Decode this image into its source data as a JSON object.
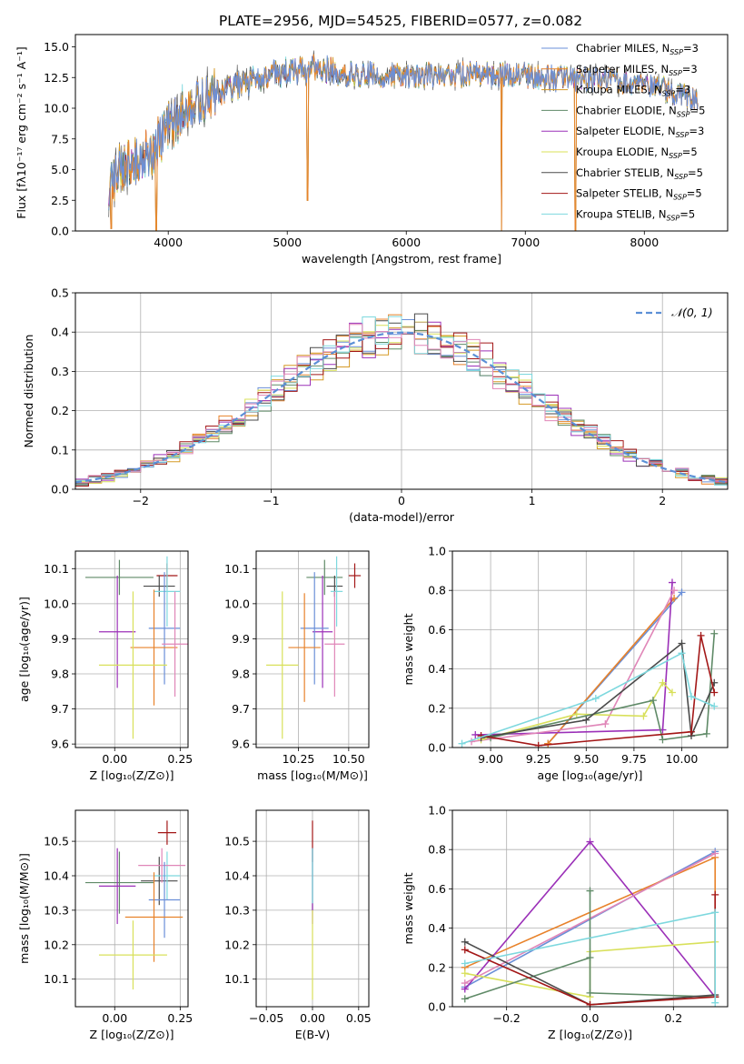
{
  "figure": {
    "title": "PLATE=2956, MJD=54525, FIBERID=0577, z=0.082"
  },
  "colors": {
    "chabrier_miles": "#6a8fd8",
    "salpeter_miles": "#e8822a",
    "kroupa_miles": "#d59a26",
    "chabrier_elodie": "#5f8a67",
    "salpeter_elodie": "#9b30b8",
    "kroupa_elodie": "#d8e05a",
    "chabrier_stelib": "#4a4a4a",
    "salpeter_stelib": "#a31717",
    "kroupa_stelib": "#7dd8de",
    "pink": "#e086b8",
    "gauss": "#5b8fd6",
    "grid": "#b0b0b0"
  },
  "chart_data": [
    {
      "id": "spectrum",
      "type": "line",
      "xlabel": "wavelength [Angstrom, rest frame]",
      "ylabel": "Flux [fλ10⁻¹⁷ erg cm⁻² s⁻¹ A⁻¹]",
      "xlim": [
        3220,
        8700
      ],
      "ylim": [
        0,
        16
      ],
      "xticks": [
        "4000",
        "5000",
        "6000",
        "7000",
        "8000"
      ],
      "yticks": [
        "0.0",
        "2.5",
        "5.0",
        "7.5",
        "10.0",
        "12.5",
        "15.0"
      ],
      "legend": [
        {
          "name": "Chabrier MILES, N",
          "sub": "SSP",
          "n": "=3",
          "color": "#6a8fd8"
        },
        {
          "name": "Salpeter MILES, N",
          "sub": "SSP",
          "n": "=3",
          "color": "#e8822a"
        },
        {
          "name": "Kroupa MILES, N",
          "sub": "SSP",
          "n": "=3",
          "color": "#d59a26"
        },
        {
          "name": "Chabrier ELODIE, N",
          "sub": "SSP",
          "n": "=5",
          "color": "#5f8a67"
        },
        {
          "name": "Salpeter ELODIE, N",
          "sub": "SSP",
          "n": "=3",
          "color": "#9b30b8"
        },
        {
          "name": "Kroupa ELODIE, N",
          "sub": "SSP",
          "n": "=5",
          "color": "#d8e05a"
        },
        {
          "name": "Chabrier STELIB, N",
          "sub": "SSP",
          "n": "=5",
          "color": "#4a4a4a"
        },
        {
          "name": "Salpeter STELIB, N",
          "sub": "SSP",
          "n": "=5",
          "color": "#a31717"
        },
        {
          "name": "Kroupa STELIB, N",
          "sub": "SSP",
          "n": "=5",
          "color": "#7dd8de"
        }
      ],
      "legend_position": "right",
      "continuum": [
        [
          3500,
          4.2
        ],
        [
          3700,
          5.8
        ],
        [
          3900,
          7.0
        ],
        [
          4000,
          8.8
        ],
        [
          4200,
          10.0
        ],
        [
          4400,
          11.2
        ],
        [
          4600,
          12.0
        ],
        [
          4800,
          12.6
        ],
        [
          5000,
          13.0
        ],
        [
          5200,
          13.2
        ],
        [
          5400,
          13.0
        ],
        [
          5600,
          12.8
        ],
        [
          5800,
          12.7
        ],
        [
          6000,
          12.6
        ],
        [
          6200,
          12.7
        ],
        [
          6500,
          12.8
        ],
        [
          6800,
          12.8
        ],
        [
          7000,
          12.6
        ],
        [
          7300,
          12.4
        ],
        [
          7600,
          12.3
        ],
        [
          7900,
          12.1
        ],
        [
          8200,
          11.5
        ],
        [
          8450,
          10.5
        ]
      ],
      "dips": [
        [
          3520,
          0.2
        ],
        [
          3900,
          0
        ],
        [
          5170,
          2.5
        ],
        [
          6800,
          0
        ],
        [
          7420,
          0
        ]
      ]
    },
    {
      "id": "residuals",
      "type": "histogram",
      "xlabel": "(data-model)/error",
      "ylabel": "Normed distribution",
      "xlim": [
        -2.5,
        2.5
      ],
      "ylim": [
        0,
        0.5
      ],
      "xticks": [
        "−2",
        "−1",
        "0",
        "1",
        "2"
      ],
      "yticks": [
        "0.0",
        "0.1",
        "0.2",
        "0.3",
        "0.4",
        "0.5"
      ],
      "gauss_label": "𝒩(0, 1)",
      "bin_width": 0.1,
      "legend_position": "top-right"
    },
    {
      "id": "age_vs_z",
      "type": "errorbar",
      "xlabel": "Z [log₁₀(Z/Z⊙)]",
      "ylabel": "age  [log₁₀(age/yr)]",
      "xlim": [
        -0.15,
        0.28
      ],
      "ylim": [
        9.59,
        10.15
      ],
      "xticks": [
        "0.00",
        "0.25"
      ],
      "yticks": [
        "9.6",
        "9.7",
        "9.8",
        "9.9",
        "10.0",
        "10.1"
      ],
      "points": [
        {
          "x": 0.018,
          "xe": 0.13,
          "y": 10.075,
          "ye": 0.05,
          "c": "#5f8a67"
        },
        {
          "x": 0.2,
          "xe": 0.04,
          "y": 10.08,
          "ye": 0.035,
          "c": "#a31717"
        },
        {
          "x": 0.17,
          "xe": 0.06,
          "y": 10.05,
          "ye": 0.03,
          "c": "#4a4a4a"
        },
        {
          "x": 0.2,
          "xe": 0.05,
          "y": 10.035,
          "ye": 0.1,
          "c": "#7dd8de"
        },
        {
          "x": 0.01,
          "xe": 0.07,
          "y": 9.92,
          "ye": 0.16,
          "c": "#9b30b8"
        },
        {
          "x": 0.19,
          "xe": 0.06,
          "y": 9.93,
          "ye": 0.16,
          "c": "#6a8fd8"
        },
        {
          "x": 0.15,
          "xe": 0.09,
          "y": 9.875,
          "ye": 0.165,
          "c": "#e8822a"
        },
        {
          "x": 0.23,
          "xe": 0.05,
          "y": 9.885,
          "ye": 0.15,
          "c": "#e086b8"
        },
        {
          "x": 0.07,
          "xe": 0.13,
          "y": 9.825,
          "ye": 0.21,
          "c": "#d8e05a"
        }
      ]
    },
    {
      "id": "age_vs_mass",
      "type": "errorbar",
      "xlabel": "mass [log₁₀(M/M⊙)]",
      "ylabel": "",
      "xlim": [
        10.04,
        10.6
      ],
      "ylim": [
        9.59,
        10.15
      ],
      "xticks": [
        "10.25",
        "10.50"
      ],
      "yticks": [
        "9.6",
        "9.7",
        "9.8",
        "9.9",
        "10.0",
        "10.1"
      ],
      "points": [
        {
          "x": 10.38,
          "xe": 0.09,
          "y": 10.075,
          "ye": 0.05,
          "c": "#5f8a67"
        },
        {
          "x": 10.53,
          "xe": 0.03,
          "y": 10.08,
          "ye": 0.035,
          "c": "#a31717"
        },
        {
          "x": 10.43,
          "xe": 0.04,
          "y": 10.05,
          "ye": 0.03,
          "c": "#4a4a4a"
        },
        {
          "x": 10.44,
          "xe": 0.03,
          "y": 10.035,
          "ye": 0.1,
          "c": "#7dd8de"
        },
        {
          "x": 10.37,
          "xe": 0.05,
          "y": 9.92,
          "ye": 0.16,
          "c": "#9b30b8"
        },
        {
          "x": 10.33,
          "xe": 0.07,
          "y": 9.93,
          "ye": 0.16,
          "c": "#6a8fd8"
        },
        {
          "x": 10.28,
          "xe": 0.08,
          "y": 9.875,
          "ye": 0.155,
          "c": "#e8822a"
        },
        {
          "x": 10.43,
          "xe": 0.05,
          "y": 9.885,
          "ye": 0.15,
          "c": "#e086b8"
        },
        {
          "x": 10.17,
          "xe": 0.08,
          "y": 9.825,
          "ye": 0.21,
          "c": "#d8e05a"
        }
      ]
    },
    {
      "id": "weight_vs_age",
      "type": "line",
      "xlabel": "age  [log₁₀(age/yr)]",
      "ylabel": "mass weight",
      "xlim": [
        8.8,
        10.24
      ],
      "ylim": [
        0,
        1.0
      ],
      "xticks": [
        "9.00",
        "9.25",
        "9.50",
        "9.75",
        "10.00"
      ],
      "yticks": [
        "0.0",
        "0.2",
        "0.4",
        "0.6",
        "0.8",
        "1.0"
      ],
      "series": [
        {
          "c": "#6a8fd8",
          "pts": [
            [
              9.3,
              0.02
            ],
            [
              10.0,
              0.79
            ]
          ]
        },
        {
          "c": "#e8822a",
          "pts": [
            [
              9.3,
              0.02
            ],
            [
              9.96,
              0.76
            ]
          ]
        },
        {
          "c": "#9b30b8",
          "pts": [
            [
              8.92,
              0.065
            ],
            [
              9.9,
              0.09
            ],
            [
              9.95,
              0.84
            ]
          ]
        },
        {
          "c": "#e086b8",
          "pts": [
            [
              8.9,
              0.03
            ],
            [
              9.6,
              0.12
            ],
            [
              9.96,
              0.8
            ]
          ]
        },
        {
          "c": "#d8e05a",
          "pts": [
            [
              8.95,
              0.04
            ],
            [
              9.45,
              0.17
            ],
            [
              9.8,
              0.16
            ],
            [
              9.9,
              0.33
            ],
            [
              9.95,
              0.28
            ]
          ]
        },
        {
          "c": "#5f8a67",
          "pts": [
            [
              9.0,
              0.05
            ],
            [
              9.85,
              0.24
            ],
            [
              9.9,
              0.04
            ],
            [
              10.13,
              0.07
            ],
            [
              10.17,
              0.58
            ]
          ]
        },
        {
          "c": "#4a4a4a",
          "pts": [
            [
              8.95,
              0.05
            ],
            [
              9.5,
              0.14
            ],
            [
              10.0,
              0.53
            ],
            [
              10.05,
              0.06
            ],
            [
              10.17,
              0.33
            ]
          ]
        },
        {
          "c": "#a31717",
          "pts": [
            [
              8.95,
              0.06
            ],
            [
              9.25,
              0.01
            ],
            [
              10.05,
              0.08
            ],
            [
              10.1,
              0.57
            ],
            [
              10.17,
              0.28
            ]
          ]
        },
        {
          "c": "#7dd8de",
          "pts": [
            [
              8.85,
              0.02
            ],
            [
              9.55,
              0.25
            ],
            [
              10.0,
              0.48
            ],
            [
              10.05,
              0.26
            ],
            [
              10.17,
              0.21
            ]
          ]
        }
      ]
    },
    {
      "id": "mass_vs_z",
      "type": "errorbar",
      "xlabel": "Z [log₁₀(Z/Z⊙)]",
      "ylabel": "mass [log₁₀(M/M⊙)]",
      "xlim": [
        -0.15,
        0.28
      ],
      "ylim": [
        10.02,
        10.59
      ],
      "xticks": [
        "0.00",
        "0.25"
      ],
      "yticks": [
        "10.1",
        "10.2",
        "10.3",
        "10.4",
        "10.5"
      ],
      "points": [
        {
          "x": 0.2,
          "xe": 0.035,
          "y": 10.525,
          "ye": 0.035,
          "c": "#a31717"
        },
        {
          "x": 0.018,
          "xe": 0.13,
          "y": 10.38,
          "ye": 0.09,
          "c": "#5f8a67"
        },
        {
          "x": 0.17,
          "xe": 0.07,
          "y": 10.385,
          "ye": 0.07,
          "c": "#4a4a4a"
        },
        {
          "x": 0.2,
          "xe": 0.05,
          "y": 10.4,
          "ye": 0.07,
          "c": "#7dd8de"
        },
        {
          "x": 0.18,
          "xe": 0.09,
          "y": 10.43,
          "ye": 0.05,
          "c": "#e086b8"
        },
        {
          "x": 0.01,
          "xe": 0.07,
          "y": 10.37,
          "ye": 0.11,
          "c": "#9b30b8"
        },
        {
          "x": 0.19,
          "xe": 0.06,
          "y": 10.33,
          "ye": 0.11,
          "c": "#6a8fd8"
        },
        {
          "x": 0.15,
          "xe": 0.11,
          "y": 10.28,
          "ye": 0.13,
          "c": "#e8822a"
        },
        {
          "x": 0.07,
          "xe": 0.13,
          "y": 10.17,
          "ye": 0.1,
          "c": "#d8e05a"
        }
      ]
    },
    {
      "id": "mass_vs_ebv",
      "type": "errorbar",
      "xlabel": "E(B-V)",
      "ylabel": "",
      "xlim": [
        -0.061,
        0.061
      ],
      "ylim": [
        10.02,
        10.59
      ],
      "xticks": [
        "−0.05",
        "0.00",
        "0.05"
      ],
      "yticks": [
        "10.1",
        "10.2",
        "10.3",
        "10.4",
        "10.5"
      ],
      "points": [
        {
          "x": 0,
          "xe": 0,
          "y": 10.5,
          "ye": 0.06,
          "c": "#a31717"
        },
        {
          "x": 0,
          "xe": 0,
          "y": 10.39,
          "ye": 0.09,
          "c": "#5f8a67"
        },
        {
          "x": 0,
          "xe": 0,
          "y": 10.37,
          "ye": 0.11,
          "c": "#9b30b8"
        },
        {
          "x": 0,
          "xe": 0,
          "y": 10.4,
          "ye": 0.08,
          "c": "#7dd8de"
        },
        {
          "x": 0,
          "xe": 0,
          "y": 10.17,
          "ye": 0.13,
          "c": "#d8e05a"
        }
      ]
    },
    {
      "id": "weight_vs_z",
      "type": "line",
      "xlabel": "Z [log₁₀(Z/Z⊙)]",
      "ylabel": "mass weight",
      "xlim": [
        -0.33,
        0.33
      ],
      "ylim": [
        0,
        1.0
      ],
      "xticks": [
        "−0.2",
        "0.0",
        "0.2"
      ],
      "yticks": [
        "0.0",
        "0.2",
        "0.4",
        "0.6",
        "0.8",
        "1.0"
      ],
      "series": [
        {
          "c": "#6a8fd8",
          "pts": [
            [
              -0.3,
              0.1
            ],
            [
              0.3,
              0.79
            ]
          ]
        },
        {
          "c": "#e8822a",
          "pts": [
            [
              -0.3,
              0.2
            ],
            [
              0.3,
              0.76
            ],
            [
              0.3,
              0.05
            ]
          ]
        },
        {
          "c": "#9b30b8",
          "pts": [
            [
              -0.3,
              0.09
            ],
            [
              0.0,
              0.84
            ],
            [
              0.3,
              0.05
            ]
          ]
        },
        {
          "c": "#e086b8",
          "pts": [
            [
              -0.3,
              0.12
            ],
            [
              0.3,
              0.78
            ]
          ]
        },
        {
          "c": "#d8e05a",
          "pts": [
            [
              -0.3,
              0.17
            ],
            [
              0.0,
              0.05
            ],
            [
              0.0,
              0.28
            ],
            [
              0.3,
              0.33
            ]
          ]
        },
        {
          "c": "#5f8a67",
          "pts": [
            [
              -0.3,
              0.04
            ],
            [
              0.0,
              0.25
            ],
            [
              0.0,
              0.59
            ],
            [
              0.0,
              0.07
            ],
            [
              0.3,
              0.05
            ]
          ]
        },
        {
          "c": "#4a4a4a",
          "pts": [
            [
              -0.3,
              0.33
            ],
            [
              0.0,
              0.01
            ],
            [
              0.3,
              0.06
            ]
          ]
        },
        {
          "c": "#a31717",
          "pts": [
            [
              -0.3,
              0.29
            ],
            [
              0.0,
              0.01
            ],
            [
              0.3,
              0.05
            ],
            [
              0.3,
              0.57
            ]
          ]
        },
        {
          "c": "#7dd8de",
          "pts": [
            [
              -0.3,
              0.22
            ],
            [
              0.3,
              0.48
            ],
            [
              0.3,
              0.02
            ]
          ]
        }
      ]
    }
  ]
}
